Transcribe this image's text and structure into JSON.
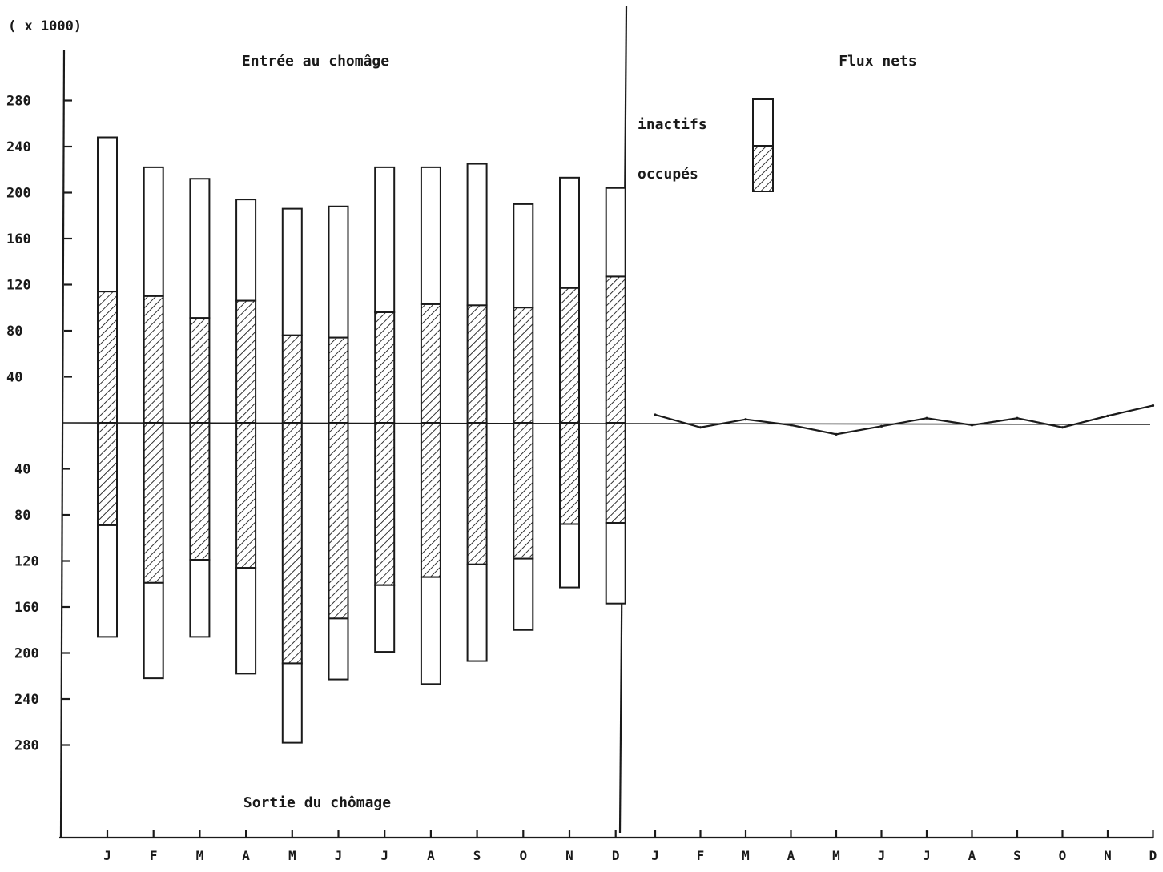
{
  "chart_data": {
    "type": "bar",
    "unit_label": "( x 1000)",
    "months": [
      "J",
      "F",
      "M",
      "A",
      "M",
      "J",
      "J",
      "A",
      "S",
      "O",
      "N",
      "D"
    ],
    "y_ticks_up": [
      "280",
      "240",
      "200",
      "160",
      "120",
      "80",
      "40"
    ],
    "y_ticks_down": [
      "40",
      "80",
      "120",
      "160",
      "200",
      "240",
      "280"
    ],
    "ylim": [
      -280,
      280
    ],
    "panels": {
      "left": {
        "top_title": "Entrée au chomâge",
        "bottom_title": "Sortie du chômage",
        "series": [
          {
            "name": "occupés",
            "entries": [
              114,
              110,
              91,
              106,
              76,
              74,
              96,
              103,
              102,
              100,
              117,
              127
            ],
            "exits": [
              89,
              139,
              119,
              126,
              209,
              170,
              141,
              134,
              123,
              118,
              88,
              87
            ]
          },
          {
            "name": "inactifs",
            "entries": [
              134,
              112,
              121,
              88,
              110,
              114,
              126,
              119,
              123,
              90,
              96,
              77
            ],
            "exits": [
              97,
              83,
              67,
              92,
              69,
              53,
              58,
              93,
              84,
              62,
              55,
              70
            ]
          }
        ],
        "entries_total": [
          248,
          222,
          212,
          194,
          186,
          188,
          222,
          222,
          225,
          190,
          213,
          204
        ],
        "exits_total": [
          186,
          222,
          186,
          218,
          278,
          223,
          199,
          227,
          207,
          180,
          143,
          157
        ]
      },
      "right": {
        "top_title": "Flux nets",
        "net_flux": [
          7,
          -4,
          3,
          -2,
          -10,
          -3,
          4,
          -2,
          4,
          -4,
          6,
          15
        ]
      }
    },
    "legend": [
      {
        "label": "inactifs",
        "style": "plain"
      },
      {
        "label": "occupés",
        "style": "hatched"
      }
    ]
  }
}
